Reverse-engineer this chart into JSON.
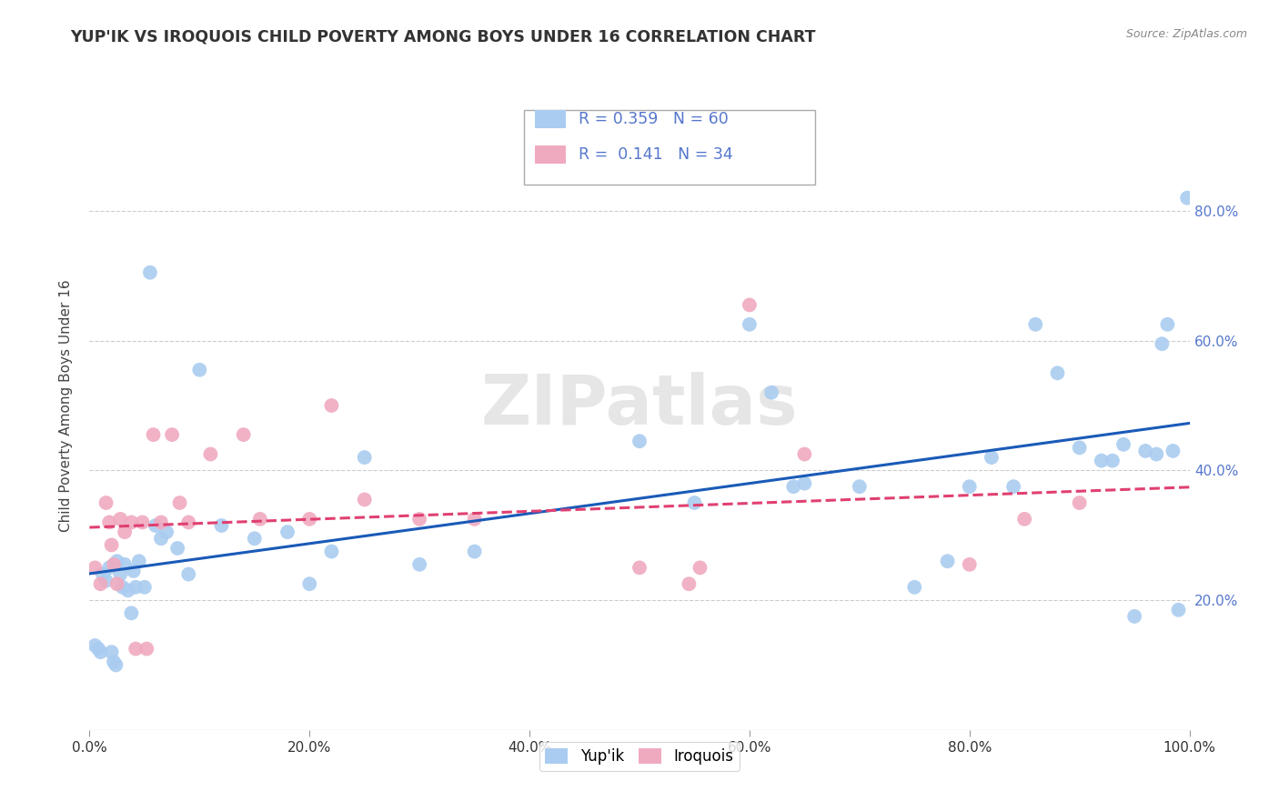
{
  "title": "YUP'IK VS IROQUOIS CHILD POVERTY AMONG BOYS UNDER 16 CORRELATION CHART",
  "source": "Source: ZipAtlas.com",
  "ylabel": "Child Poverty Among Boys Under 16",
  "watermark": "ZIPatlas",
  "legend_blue_r": "0.359",
  "legend_blue_n": "60",
  "legend_pink_r": "0.141",
  "legend_pink_n": "34",
  "blue_label": "Yup'ik",
  "pink_label": "Iroquois",
  "blue_x": [
    0.005,
    0.008,
    0.01,
    0.012,
    0.015,
    0.018,
    0.02,
    0.022,
    0.024,
    0.025,
    0.028,
    0.03,
    0.032,
    0.035,
    0.038,
    0.04,
    0.042,
    0.045,
    0.05,
    0.055,
    0.06,
    0.065,
    0.07,
    0.08,
    0.09,
    0.1,
    0.12,
    0.15,
    0.18,
    0.2,
    0.22,
    0.25,
    0.3,
    0.35,
    0.5,
    0.55,
    0.6,
    0.62,
    0.64,
    0.65,
    0.7,
    0.75,
    0.78,
    0.8,
    0.82,
    0.84,
    0.86,
    0.88,
    0.9,
    0.92,
    0.93,
    0.94,
    0.95,
    0.96,
    0.97,
    0.975,
    0.98,
    0.985,
    0.99,
    0.998
  ],
  "blue_y": [
    0.13,
    0.125,
    0.12,
    0.24,
    0.23,
    0.25,
    0.12,
    0.105,
    0.1,
    0.26,
    0.24,
    0.22,
    0.255,
    0.215,
    0.18,
    0.245,
    0.22,
    0.26,
    0.22,
    0.705,
    0.315,
    0.295,
    0.305,
    0.28,
    0.24,
    0.555,
    0.315,
    0.295,
    0.305,
    0.225,
    0.275,
    0.42,
    0.255,
    0.275,
    0.445,
    0.35,
    0.625,
    0.52,
    0.375,
    0.38,
    0.375,
    0.22,
    0.26,
    0.375,
    0.42,
    0.375,
    0.625,
    0.55,
    0.435,
    0.415,
    0.415,
    0.44,
    0.175,
    0.43,
    0.425,
    0.595,
    0.625,
    0.43,
    0.185,
    0.82
  ],
  "pink_x": [
    0.005,
    0.01,
    0.015,
    0.018,
    0.02,
    0.022,
    0.025,
    0.028,
    0.032,
    0.038,
    0.042,
    0.048,
    0.052,
    0.058,
    0.065,
    0.075,
    0.082,
    0.09,
    0.11,
    0.14,
    0.155,
    0.2,
    0.22,
    0.25,
    0.3,
    0.35,
    0.5,
    0.545,
    0.555,
    0.6,
    0.65,
    0.8,
    0.85,
    0.9
  ],
  "pink_y": [
    0.25,
    0.225,
    0.35,
    0.32,
    0.285,
    0.255,
    0.225,
    0.325,
    0.305,
    0.32,
    0.125,
    0.32,
    0.125,
    0.455,
    0.32,
    0.455,
    0.35,
    0.32,
    0.425,
    0.455,
    0.325,
    0.325,
    0.5,
    0.355,
    0.325,
    0.325,
    0.25,
    0.225,
    0.25,
    0.655,
    0.425,
    0.255,
    0.325,
    0.35
  ],
  "blue_color": "#aaccf0",
  "pink_color": "#f0aac0",
  "blue_line_color": "#1a5ab8",
  "pink_line_color": "#e04070",
  "tick_color": "#5577cc",
  "background_color": "#ffffff",
  "grid_color": "#cccccc",
  "title_color": "#333333",
  "ylabel_color": "#444444"
}
